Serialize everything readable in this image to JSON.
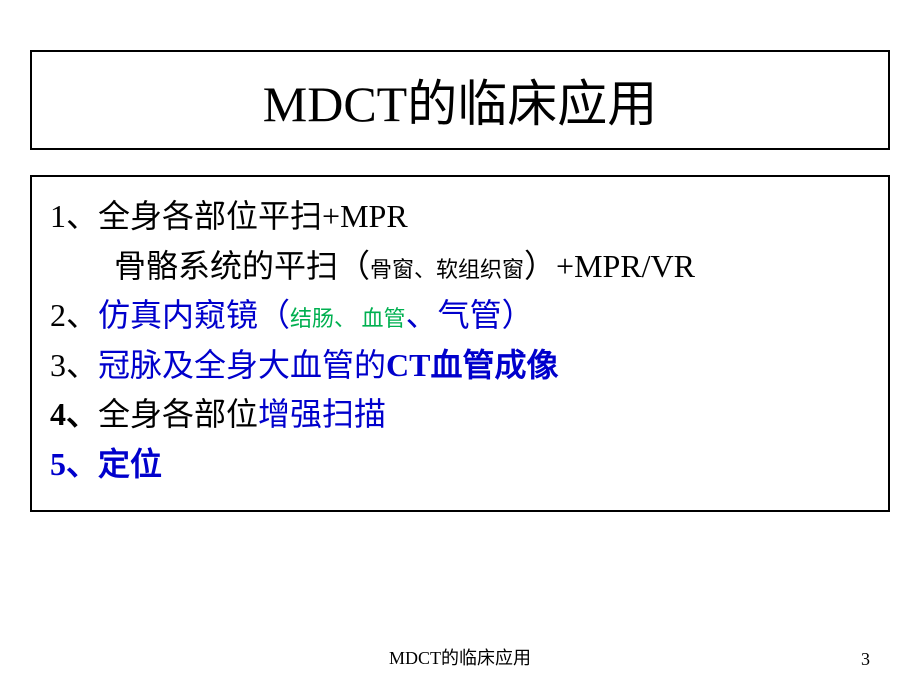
{
  "title": "MDCT的临床应用",
  "content": {
    "line1_num": "1、",
    "line1_a": "全身各部位平扫+MPR",
    "line1_b_prefix": "骨骼系统的平扫（",
    "line1_b_small": "骨窗、软组织窗",
    "line1_b_suffix": "）+MPR/VR",
    "line2_num": "2、",
    "line2_prefix": "仿真内窥镜（",
    "line2_green1": "结肠、",
    "line2_green2": " 血管",
    "line2_mid": "、气管）",
    "line3_num": "3、",
    "line3_text": "冠脉及全身大血管的",
    "line3_bold": "CT血管成像",
    "line4_num": "4、",
    "line4_prefix": "全身各部位",
    "line4_blue": "增强扫描",
    "line5_num": "5、",
    "line5_text": "定位"
  },
  "footer": "MDCT的临床应用",
  "page_number": "3",
  "colors": {
    "text_black": "#000000",
    "text_blue": "#0000cc",
    "text_green": "#00b050",
    "background": "#ffffff",
    "border": "#000000"
  }
}
